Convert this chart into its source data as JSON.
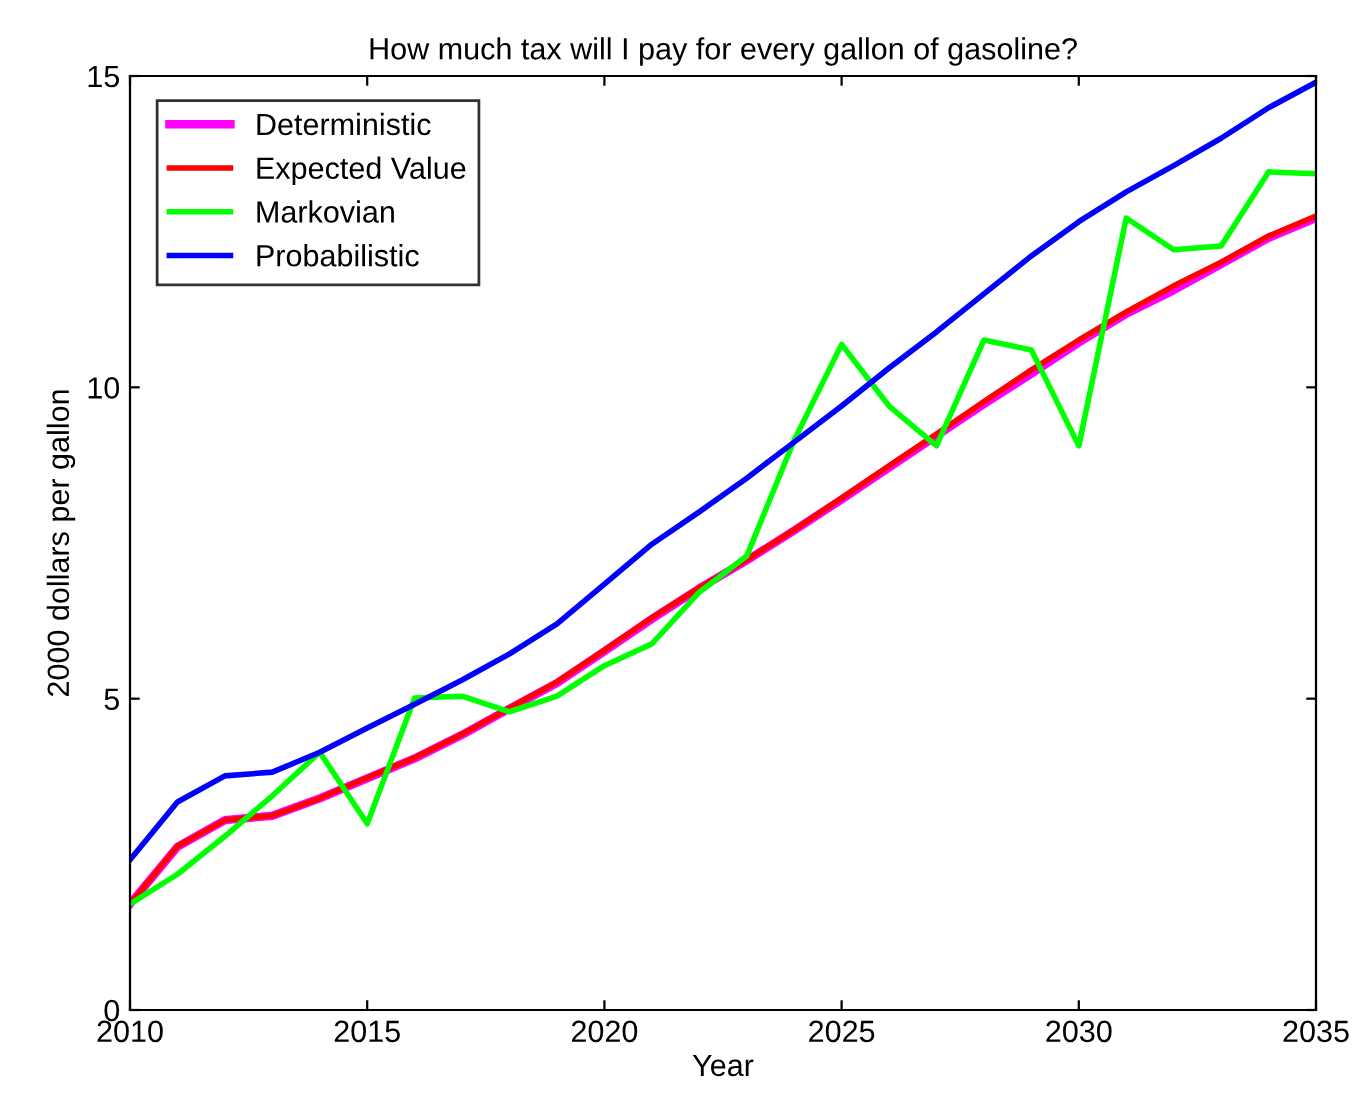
{
  "chart_data": {
    "type": "line",
    "title": "How much tax will I pay for every gallon of gasoline?",
    "xlabel": "Year",
    "ylabel": "2000 dollars per gallon",
    "x": [
      2010,
      2011,
      2012,
      2013,
      2014,
      2015,
      2016,
      2017,
      2018,
      2019,
      2020,
      2021,
      2022,
      2023,
      2024,
      2025,
      2026,
      2027,
      2028,
      2029,
      2030,
      2031,
      2032,
      2033,
      2034,
      2035
    ],
    "series": [
      {
        "name": "Deterministic",
        "color": "#ff00ff",
        "values": [
          1.7,
          2.62,
          3.05,
          3.12,
          3.4,
          3.72,
          4.04,
          4.42,
          4.84,
          5.25,
          5.76,
          6.28,
          6.77,
          7.22,
          7.7,
          8.2,
          8.71,
          9.22,
          9.73,
          10.22,
          10.72,
          11.18,
          11.56,
          11.98,
          12.4,
          12.72
        ]
      },
      {
        "name": "Expected Value",
        "color": "#ff0000",
        "values": [
          1.7,
          2.63,
          3.05,
          3.12,
          3.4,
          3.73,
          4.05,
          4.43,
          4.85,
          5.27,
          5.78,
          6.3,
          6.78,
          7.23,
          7.71,
          8.22,
          8.74,
          9.25,
          9.77,
          10.28,
          10.76,
          11.21,
          11.63,
          12.01,
          12.43,
          12.75
        ]
      },
      {
        "name": "Markovian",
        "color": "#00ff00",
        "values": [
          1.7,
          2.18,
          2.79,
          3.44,
          4.14,
          2.99,
          5.01,
          5.04,
          4.79,
          5.04,
          5.53,
          5.88,
          6.71,
          7.29,
          9.15,
          10.69,
          9.7,
          9.06,
          10.76,
          10.6,
          9.06,
          12.72,
          12.21,
          12.27,
          13.46,
          13.43
        ]
      },
      {
        "name": "Probabilistic",
        "color": "#0000ff",
        "values": [
          2.41,
          3.34,
          3.76,
          3.82,
          4.14,
          4.53,
          4.91,
          5.3,
          5.72,
          6.2,
          6.84,
          7.48,
          8.0,
          8.54,
          9.12,
          9.7,
          10.31,
          10.89,
          11.5,
          12.11,
          12.66,
          13.14,
          13.56,
          14.0,
          14.49,
          14.9
        ]
      }
    ],
    "xlim": [
      2010,
      2035
    ],
    "ylim": [
      0,
      15
    ],
    "xticks": [
      2010,
      2015,
      2020,
      2025,
      2030,
      2035
    ],
    "yticks": [
      0,
      5,
      10,
      15
    ],
    "grid": false,
    "legend": "top left",
    "line_style": "solid",
    "marker": "none"
  }
}
